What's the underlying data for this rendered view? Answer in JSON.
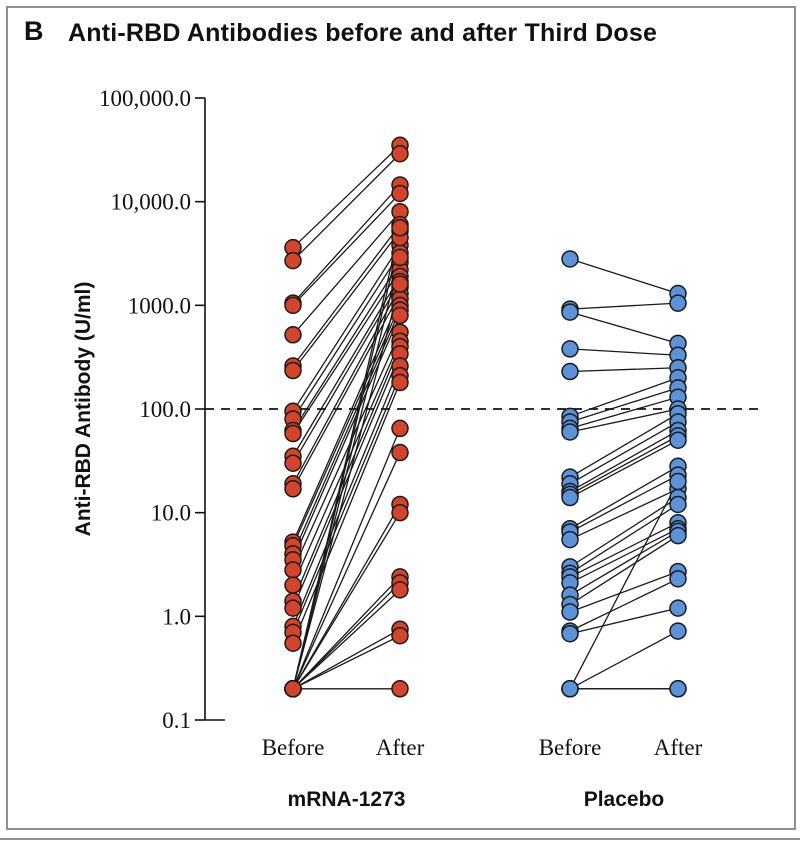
{
  "panel": {
    "letter": "B",
    "title": "Anti-RBD Antibodies before and after Third Dose"
  },
  "chart_data": {
    "type": "scatter",
    "title": "Anti-RBD Antibodies before and after Third Dose",
    "ylabel": "Anti-RBD Antibody (U/ml)",
    "yscale": "log",
    "ylim": [
      0.1,
      100000
    ],
    "yticks": [
      0.1,
      1,
      10,
      100,
      1000,
      10000,
      100000
    ],
    "ytick_labels": [
      "0.1",
      "1.0",
      "10.0",
      "100.0",
      "1000.0",
      "10,000.0",
      "100,000.0"
    ],
    "reference_line": {
      "value": 100,
      "style": "dashed"
    },
    "categories": [
      "Before",
      "After",
      "Before",
      "After"
    ],
    "groups": [
      {
        "name": "mRNA-1273",
        "color": "#d2442b",
        "before": [
          3600,
          2700,
          1050,
          1000,
          520,
          260,
          235,
          95,
          80,
          62,
          58,
          35,
          30,
          19,
          17,
          5.2,
          4.8,
          4,
          3.5,
          2.8,
          2,
          1.4,
          1.2,
          0.8,
          0.7,
          0.55,
          0.2,
          0.2,
          0.2,
          0.2,
          0.2,
          0.2,
          0.2,
          0.2,
          0.2,
          0.2,
          0.2,
          0.2,
          0.2,
          0.2
        ],
        "after": [
          35000,
          29000,
          14500,
          12000,
          8000,
          6000,
          5200,
          3800,
          3200,
          2600,
          2200,
          1900,
          1700,
          1500,
          1300,
          1150,
          1000,
          900,
          800,
          550,
          450,
          400,
          340,
          260,
          210,
          180,
          65,
          38,
          12,
          10,
          2.4,
          2.1,
          1.8,
          0.75,
          0.65,
          0.2,
          1600,
          2900,
          4500,
          5600
        ]
      },
      {
        "name": "Placebo",
        "color": "#5b92d8",
        "before": [
          2800,
          920,
          860,
          380,
          230,
          85,
          75,
          65,
          60,
          22,
          19,
          16,
          15,
          14,
          7,
          6.5,
          5.5,
          3,
          2.6,
          2.4,
          2.1,
          1.6,
          1.3,
          1.1,
          0.72,
          0.68,
          0.2,
          0.2,
          0.2,
          0.2
        ],
        "after": [
          1300,
          1050,
          430,
          330,
          250,
          200,
          160,
          130,
          100,
          90,
          75,
          62,
          55,
          50,
          28,
          23,
          17,
          14,
          12,
          8,
          7,
          6.6,
          6,
          2.7,
          2.3,
          1.2,
          0.72,
          0.2,
          0.2,
          20
        ]
      }
    ]
  }
}
